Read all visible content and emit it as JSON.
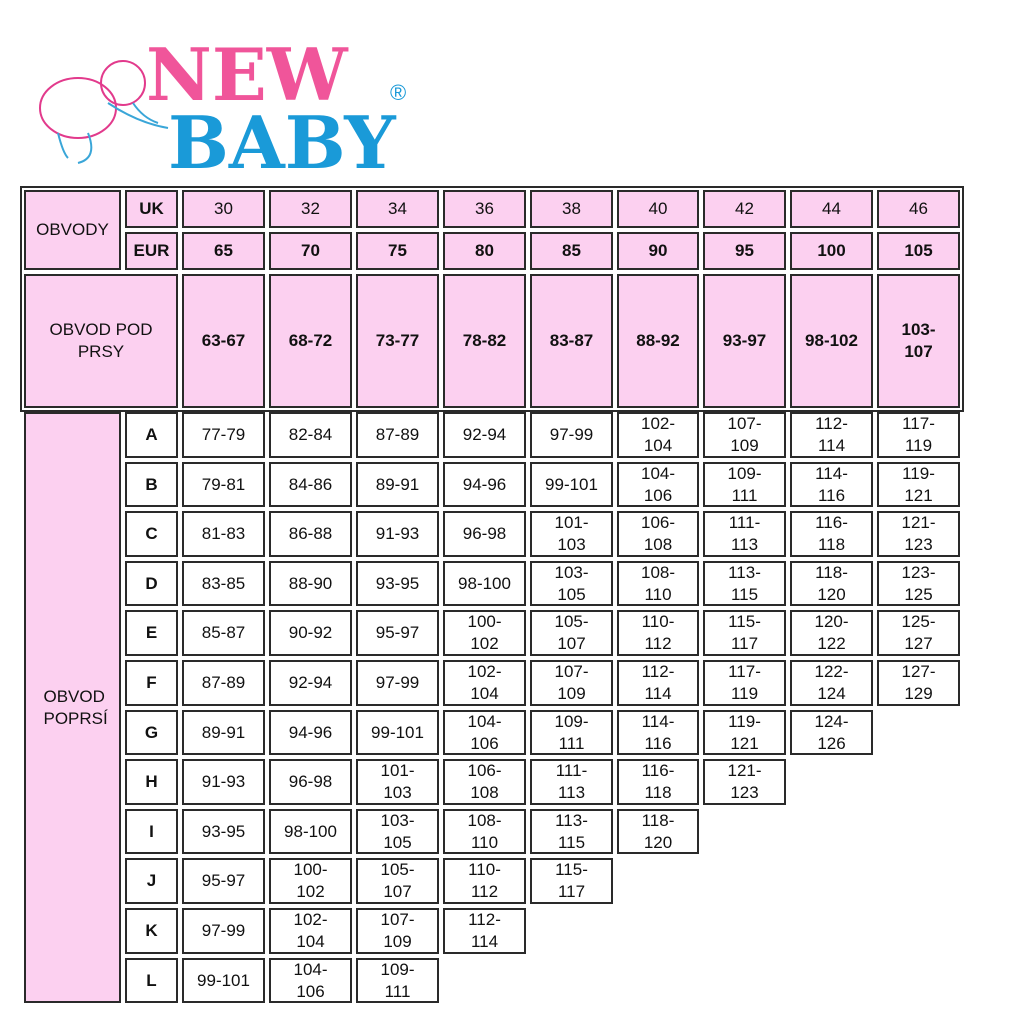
{
  "logo": {
    "line1": "NEW",
    "line2": "BABY",
    "mark": "®",
    "colors": {
      "pink": "#f0559a",
      "blue": "#1a9ad8"
    }
  },
  "colors": {
    "header_fill": "#fcd0f0",
    "border": "#2a2a2a"
  },
  "header": {
    "circumference_label": "OBVODY",
    "uk_label": "UK",
    "eur_label": "EUR",
    "uk_sizes": [
      "30",
      "32",
      "34",
      "36",
      "38",
      "40",
      "42",
      "44",
      "46"
    ],
    "eur_sizes": [
      "65",
      "70",
      "75",
      "80",
      "85",
      "90",
      "95",
      "100",
      "105"
    ],
    "underbust_label": "OBVOD POD PRSY",
    "underbust": [
      "63-67",
      "68-72",
      "73-77",
      "78-82",
      "83-87",
      "88-92",
      "93-97",
      "98-102",
      "103-107"
    ]
  },
  "bust_label": "OBVOD POPRSÍ",
  "cups": [
    {
      "cup": "A",
      "values": [
        "77-79",
        "82-84",
        "87-89",
        "92-94",
        "97-99",
        "102-104",
        "107-109",
        "112-114",
        "117-119"
      ]
    },
    {
      "cup": "B",
      "values": [
        "79-81",
        "84-86",
        "89-91",
        "94-96",
        "99-101",
        "104-106",
        "109-111",
        "114-116",
        "119-121"
      ]
    },
    {
      "cup": "C",
      "values": [
        "81-83",
        "86-88",
        "91-93",
        "96-98",
        "101-103",
        "106-108",
        "111-113",
        "116-118",
        "121-123"
      ]
    },
    {
      "cup": "D",
      "values": [
        "83-85",
        "88-90",
        "93-95",
        "98-100",
        "103-105",
        "108-110",
        "113-115",
        "118-120",
        "123-125"
      ]
    },
    {
      "cup": "E",
      "values": [
        "85-87",
        "90-92",
        "95-97",
        "100-102",
        "105-107",
        "110-112",
        "115-117",
        "120-122",
        "125-127"
      ]
    },
    {
      "cup": "F",
      "values": [
        "87-89",
        "92-94",
        "97-99",
        "102-104",
        "107-109",
        "112-114",
        "117-119",
        "122-124",
        "127-129"
      ]
    },
    {
      "cup": "G",
      "values": [
        "89-91",
        "94-96",
        "99-101",
        "104-106",
        "109-111",
        "114-116",
        "119-121",
        "124-126"
      ]
    },
    {
      "cup": "H",
      "values": [
        "91-93",
        "96-98",
        "101-103",
        "106-108",
        "111-113",
        "116-118",
        "121-123"
      ]
    },
    {
      "cup": "I",
      "values": [
        "93-95",
        "98-100",
        "103-105",
        "108-110",
        "113-115",
        "118-120"
      ]
    },
    {
      "cup": "J",
      "values": [
        "95-97",
        "100-102",
        "105-107",
        "110-112",
        "115-117"
      ]
    },
    {
      "cup": "K",
      "values": [
        "97-99",
        "102-104",
        "107-109",
        "112-114"
      ]
    },
    {
      "cup": "L",
      "values": [
        "99-101",
        "104-106",
        "109-111"
      ]
    }
  ]
}
